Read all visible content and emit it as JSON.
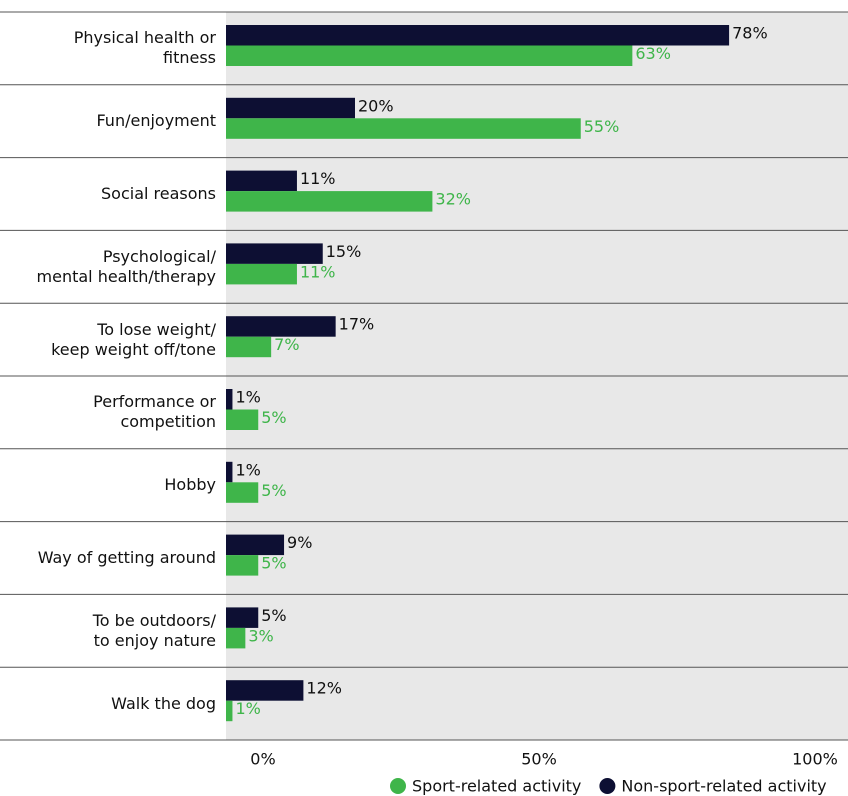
{
  "chart_data": {
    "type": "bar",
    "orientation": "horizontal",
    "categories": [
      "Physical health or\nfitness",
      "Fun/enjoyment",
      "Social reasons",
      "Psychological/\nmental health/therapy",
      "To lose weight/\nkeep weight off/tone",
      "Performance or\ncompetition",
      "Hobby",
      "Way of getting around",
      "To be outdoors/\nto enjoy nature",
      "Walk the dog"
    ],
    "series": [
      {
        "name": "Sport-related activity",
        "color": "#3fb54a",
        "values": [
          63,
          55,
          32,
          11,
          7,
          5,
          5,
          5,
          3,
          1
        ],
        "value_labels": [
          "63%",
          "55%",
          "32%",
          "11%",
          "7%",
          "5%",
          "5%",
          "5%",
          "3%",
          "1%"
        ]
      },
      {
        "name": "Non-sport-related activity",
        "color": "#0d0f33",
        "values": [
          78,
          20,
          11,
          15,
          17,
          1,
          1,
          9,
          5,
          12
        ],
        "value_labels": [
          "78%",
          "20%",
          "11%",
          "15%",
          "17%",
          "1%",
          "1%",
          "9%",
          "5%",
          "12%"
        ]
      }
    ],
    "xlim": [
      0,
      100
    ],
    "xticks": [
      {
        "value": 0,
        "label": "0%"
      },
      {
        "value": 50,
        "label": "50%"
      },
      {
        "value": 100,
        "label": "100%"
      }
    ],
    "legend": "bottom-right"
  }
}
